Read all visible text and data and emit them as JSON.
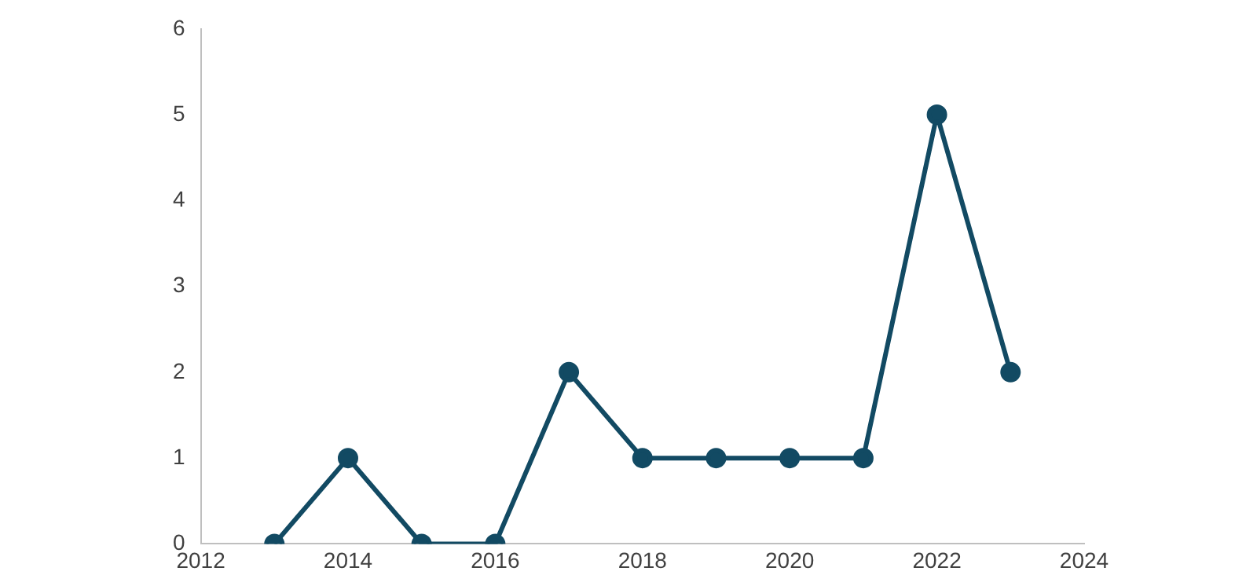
{
  "chart_data": {
    "type": "line",
    "x": [
      2013,
      2014,
      2015,
      2016,
      2017,
      2018,
      2019,
      2020,
      2021,
      2022,
      2023
    ],
    "series": [
      {
        "color": "#124a63",
        "values": [
          0,
          1,
          0,
          0,
          2,
          1,
          1,
          1,
          1,
          5,
          2
        ]
      }
    ],
    "xlim": [
      2012,
      2024
    ],
    "xticks": [
      2012,
      2014,
      2016,
      2018,
      2020,
      2022,
      2024
    ],
    "ylim": [
      0,
      6
    ],
    "yticks": [
      0,
      1,
      2,
      3,
      4,
      5,
      6
    ],
    "grid": false,
    "legend": false,
    "marker": "circle",
    "line_style": "solid"
  }
}
